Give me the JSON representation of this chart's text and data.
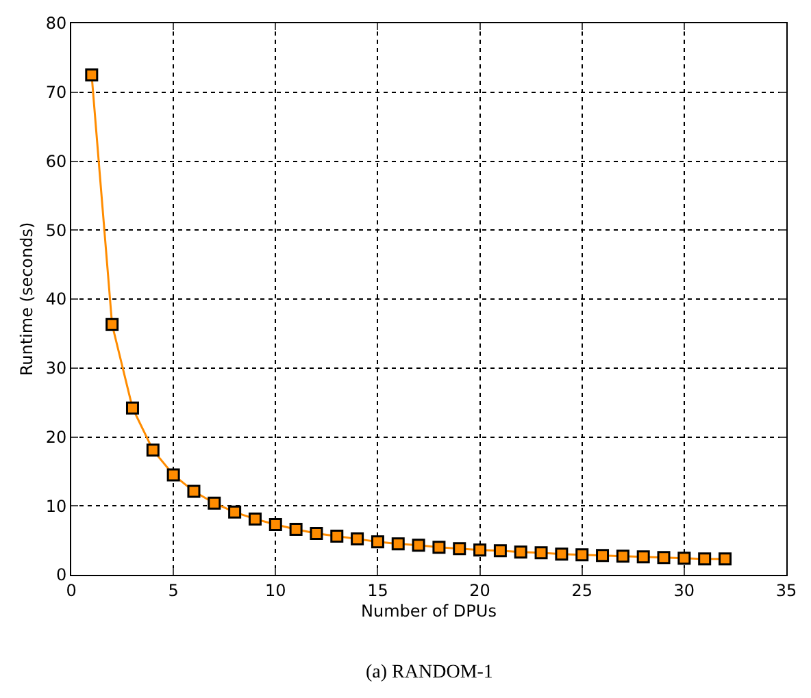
{
  "chart_data": {
    "type": "line",
    "xlabel": "Number of DPUs",
    "ylabel": "Runtime (seconds)",
    "annotations": [
      "(a) RANDOM-1"
    ],
    "x": [
      1,
      2,
      3,
      4,
      5,
      6,
      7,
      8,
      9,
      10,
      11,
      12,
      13,
      14,
      15,
      16,
      17,
      18,
      19,
      20,
      21,
      22,
      23,
      24,
      25,
      26,
      27,
      28,
      29,
      30,
      31,
      32
    ],
    "series": [
      {
        "color": "#ff8c00",
        "values": [
          72.5,
          36.3,
          24.2,
          18.1,
          14.5,
          12.1,
          10.4,
          9.1,
          8.1,
          7.3,
          6.6,
          6.0,
          5.6,
          5.2,
          4.8,
          4.5,
          4.3,
          4.0,
          3.8,
          3.6,
          3.5,
          3.3,
          3.2,
          3.0,
          2.9,
          2.8,
          2.7,
          2.6,
          2.5,
          2.4,
          2.3,
          2.3
        ]
      }
    ],
    "xlim": [
      0,
      35
    ],
    "xticks": [
      0,
      5,
      10,
      15,
      20,
      25,
      30,
      35
    ],
    "ylim": [
      0,
      80
    ],
    "yticks": [
      0,
      10,
      20,
      30,
      40,
      50,
      60,
      70,
      80
    ],
    "grid": true,
    "marker": "square",
    "line_style": "solid"
  }
}
